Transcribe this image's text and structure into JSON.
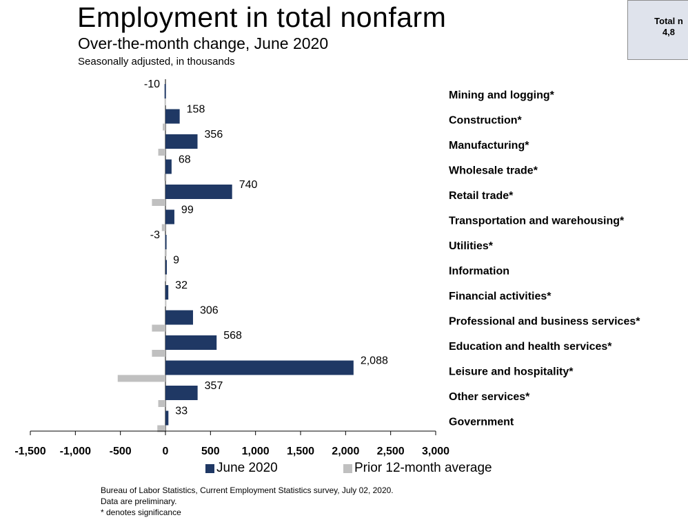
{
  "header": {
    "title": "Employment in total nonfarm",
    "subtitle": "Over-the-month change, June 2020",
    "note": "Seasonally adjusted, in thousands"
  },
  "callout": {
    "line1": "Total n",
    "line2": "4,8"
  },
  "colors": {
    "june_2020": "#1f3864",
    "prior_avg": "#c0c0c0"
  },
  "legend": [
    {
      "label": "June 2020"
    },
    {
      "label": "Prior 12-month average"
    }
  ],
  "footer": {
    "source": "Bureau of Labor Statistics, Current Employment Statistics survey, July 02, 2020.",
    "preliminary": "Data are preliminary.",
    "significance": "* denotes significance"
  },
  "chart_data": {
    "type": "bar",
    "orientation": "horizontal",
    "title": "Employment in total nonfarm",
    "subtitle": "Over-the-month change, June 2020",
    "categories": [
      "Mining and logging*",
      "Construction*",
      "Manufacturing*",
      "Wholesale trade*",
      "Retail trade*",
      "Transportation and warehousing*",
      "Utilities*",
      "Information",
      "Financial activities*",
      "Professional and business services*",
      "Education and health services*",
      "Leisure and hospitality*",
      "Other services*",
      "Government"
    ],
    "series": [
      {
        "name": "June 2020",
        "values": [
          -10,
          158,
          356,
          68,
          740,
          99,
          -3,
          9,
          32,
          306,
          568,
          2088,
          357,
          33
        ]
      },
      {
        "name": "Prior 12-month average",
        "values": [
          -10,
          -30,
          -80,
          -15,
          -150,
          -40,
          -2,
          -5,
          -5,
          -150,
          -150,
          -530,
          -80,
          -90
        ]
      }
    ],
    "data_labels": [
      "-10",
      "158",
      "356",
      "68",
      "740",
      "99",
      "-3",
      "9",
      "32",
      "306",
      "568",
      "2,088",
      "357",
      "33"
    ],
    "x_ticks": [
      -1500,
      -1000,
      -500,
      0,
      500,
      1000,
      1500,
      2000,
      2500,
      3000
    ],
    "x_tick_labels": [
      "-1,500",
      "-1,000",
      "-500",
      "0",
      "500",
      "1,000",
      "1,500",
      "2,000",
      "2,500",
      "3,000"
    ],
    "xlim": [
      -1500,
      3000
    ],
    "grid": false,
    "legend_position": "bottom"
  }
}
